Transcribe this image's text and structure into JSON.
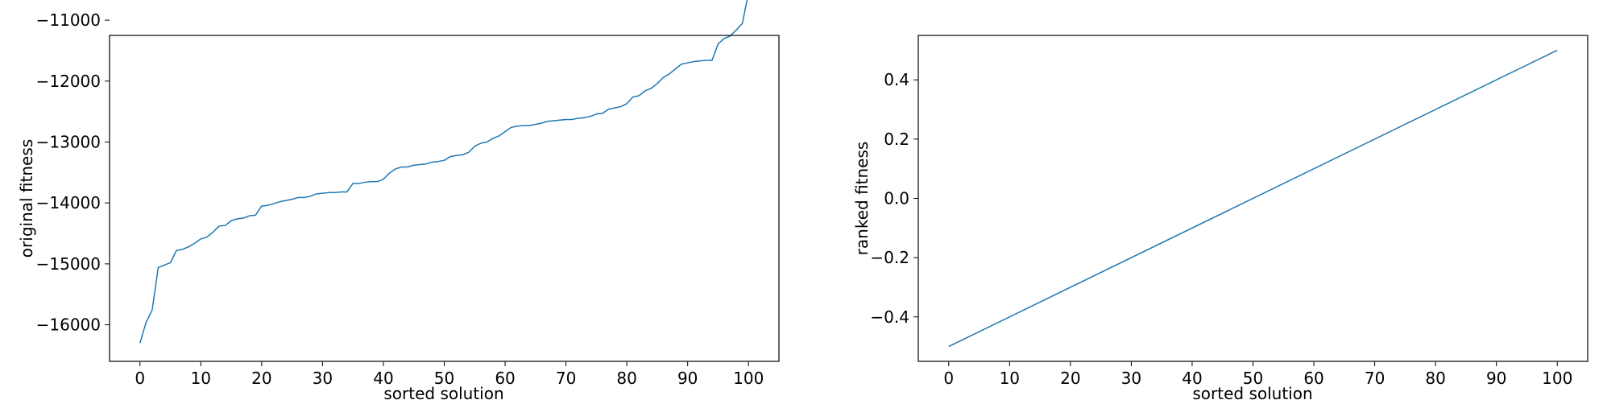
{
  "chart_data": [
    {
      "type": "line",
      "title": "",
      "xlabel": "sorted solution",
      "ylabel": "original fitness",
      "xlim": [
        -5,
        105
      ],
      "ylim": [
        -16600,
        -11250
      ],
      "xticks": [
        0,
        10,
        20,
        30,
        40,
        50,
        60,
        70,
        80,
        90,
        100
      ],
      "yticks": [
        -16000,
        -15000,
        -14000,
        -13000,
        -12000,
        -11000
      ],
      "ytick_labels": [
        "−16000",
        "−15000",
        "−14000",
        "−13000",
        "−12000",
        "−11000"
      ],
      "grid": false,
      "line_color": "#1f77b4",
      "series": [
        {
          "x": [
            0,
            1,
            2,
            3,
            4,
            5,
            6,
            7,
            8,
            9,
            10,
            11,
            12,
            13,
            14,
            15,
            16,
            17,
            18,
            19,
            20,
            21,
            22,
            23,
            24,
            25,
            26,
            27,
            28,
            29,
            30,
            31,
            32,
            33,
            34,
            35,
            36,
            37,
            38,
            39,
            40,
            41,
            42,
            43,
            44,
            45,
            46,
            47,
            48,
            49,
            50,
            51,
            52,
            53,
            54,
            55,
            56,
            57,
            58,
            59,
            60,
            61,
            62,
            63,
            64,
            65,
            66,
            67,
            68,
            69,
            70,
            71,
            72,
            73,
            74,
            75,
            76,
            77,
            78,
            79,
            80,
            81,
            82,
            83,
            84,
            85,
            86,
            87,
            88,
            89,
            90,
            91,
            92,
            93,
            94,
            95,
            96,
            97,
            98,
            99,
            100
          ],
          "values": [
            -16300,
            -15960,
            -15760,
            -15060,
            -15020,
            -14980,
            -14780,
            -14760,
            -14720,
            -14660,
            -14590,
            -14560,
            -14480,
            -14380,
            -14370,
            -14290,
            -14260,
            -14250,
            -14210,
            -14200,
            -14050,
            -14040,
            -14010,
            -13980,
            -13960,
            -13940,
            -13910,
            -13910,
            -13890,
            -13850,
            -13840,
            -13830,
            -13830,
            -13820,
            -13820,
            -13680,
            -13680,
            -13660,
            -13650,
            -13650,
            -13610,
            -13510,
            -13440,
            -13410,
            -13410,
            -13380,
            -13370,
            -13360,
            -13330,
            -13320,
            -13300,
            -13240,
            -13220,
            -13210,
            -13170,
            -13070,
            -13020,
            -13000,
            -12940,
            -12900,
            -12830,
            -12760,
            -12740,
            -12730,
            -12730,
            -12710,
            -12690,
            -12660,
            -12650,
            -12640,
            -12630,
            -12630,
            -12610,
            -12600,
            -12580,
            -12540,
            -12530,
            -12460,
            -12440,
            -12420,
            -12370,
            -12260,
            -12240,
            -12160,
            -12120,
            -12040,
            -11940,
            -11880,
            -11800,
            -11720,
            -11700,
            -11680,
            -11670,
            -11660,
            -11660,
            -11390,
            -11300,
            -11260,
            -11160,
            -11050,
            -10550
          ]
        }
      ]
    },
    {
      "type": "line",
      "title": "",
      "xlabel": "sorted solution",
      "ylabel": "ranked fitness",
      "xlim": [
        -5,
        105
      ],
      "ylim": [
        -0.55,
        0.55
      ],
      "xticks": [
        0,
        10,
        20,
        30,
        40,
        50,
        60,
        70,
        80,
        90,
        100
      ],
      "yticks": [
        -0.4,
        -0.2,
        0.0,
        0.2,
        0.4
      ],
      "ytick_labels": [
        "−0.4",
        "−0.2",
        "0.0",
        "0.2",
        "0.4"
      ],
      "grid": false,
      "line_color": "#1f77b4",
      "series": [
        {
          "x": [
            0,
            100
          ],
          "values": [
            -0.5,
            0.5
          ]
        }
      ]
    }
  ]
}
